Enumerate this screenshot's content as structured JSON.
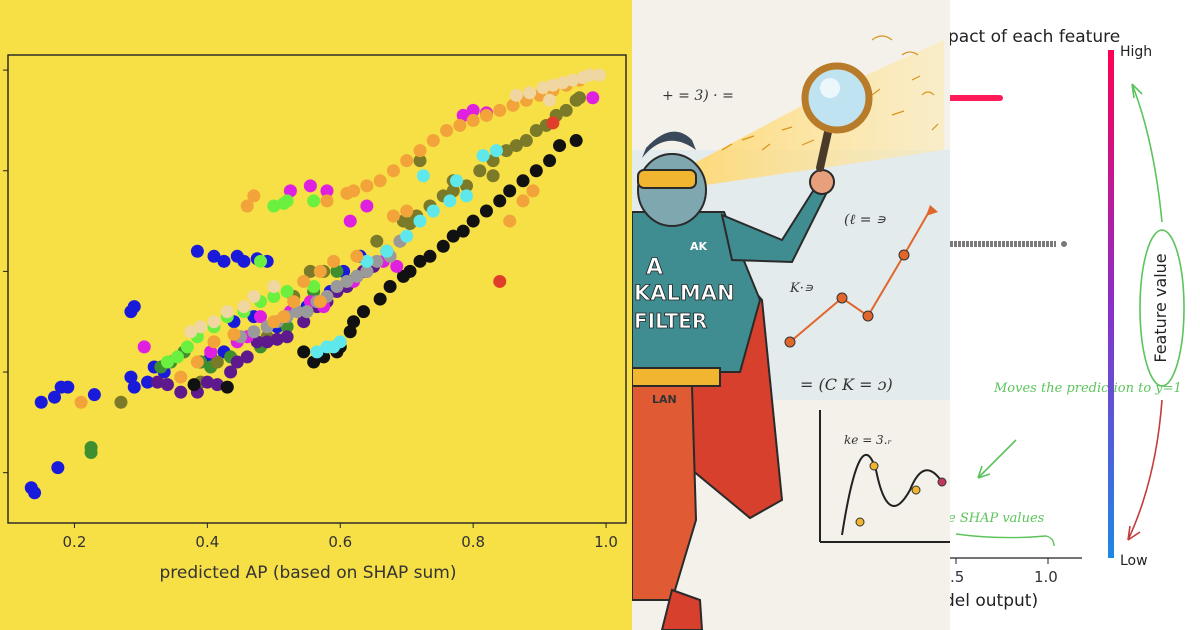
{
  "chart_data": {
    "type": "scatter",
    "xlabel": "predicted AP (based on SHAP sum)",
    "ylabel": "",
    "title": "",
    "xlim": [
      0.1,
      1.03
    ],
    "ylim": [
      0.1,
      1.03
    ],
    "x_ticks": [
      "0.2",
      "0.4",
      "0.6",
      "0.8",
      "1.0"
    ],
    "grid": false,
    "colors": {
      "background": "#f7df46",
      "blue": "#1a1adb",
      "green": "#3f8f2f",
      "olive": "#7a7a28",
      "purple": "#5e1a8c",
      "black": "#111111",
      "magenta": "#e020e0",
      "gray": "#9a9a9a",
      "cyan": "#5ee8ec",
      "lime": "#6cf040",
      "orange": "#f2a33a",
      "beige": "#f0d6a0",
      "red": "#e03e2a"
    },
    "series": [
      {
        "color": "#1a1adb",
        "points": [
          [
            0.135,
            0.17
          ],
          [
            0.14,
            0.16
          ],
          [
            0.175,
            0.21
          ],
          [
            0.15,
            0.34
          ],
          [
            0.17,
            0.35
          ],
          [
            0.18,
            0.37
          ],
          [
            0.19,
            0.37
          ],
          [
            0.23,
            0.355
          ],
          [
            0.285,
            0.39
          ],
          [
            0.29,
            0.37
          ],
          [
            0.31,
            0.38
          ],
          [
            0.32,
            0.41
          ],
          [
            0.335,
            0.4
          ],
          [
            0.29,
            0.53
          ],
          [
            0.285,
            0.52
          ],
          [
            0.385,
            0.64
          ],
          [
            0.41,
            0.63
          ],
          [
            0.425,
            0.62
          ],
          [
            0.445,
            0.63
          ],
          [
            0.455,
            0.62
          ],
          [
            0.475,
            0.625
          ],
          [
            0.49,
            0.62
          ],
          [
            0.405,
            0.43
          ],
          [
            0.425,
            0.44
          ],
          [
            0.39,
            0.42
          ],
          [
            0.44,
            0.5
          ],
          [
            0.47,
            0.51
          ],
          [
            0.505,
            0.49
          ],
          [
            0.55,
            0.53
          ],
          [
            0.585,
            0.56
          ],
          [
            0.63,
            0.63
          ],
          [
            0.605,
            0.6
          ]
        ]
      },
      {
        "color": "#3f8f2f",
        "points": [
          [
            0.225,
            0.24
          ],
          [
            0.225,
            0.25
          ],
          [
            0.33,
            0.41
          ],
          [
            0.345,
            0.42
          ],
          [
            0.365,
            0.44
          ],
          [
            0.39,
            0.42
          ],
          [
            0.405,
            0.41
          ],
          [
            0.435,
            0.43
          ],
          [
            0.48,
            0.45
          ],
          [
            0.52,
            0.49
          ],
          [
            0.56,
            0.56
          ],
          [
            0.595,
            0.6
          ]
        ]
      },
      {
        "color": "#7a7a28",
        "points": [
          [
            0.27,
            0.34
          ],
          [
            0.39,
            0.38
          ],
          [
            0.415,
            0.42
          ],
          [
            0.49,
            0.47
          ],
          [
            0.53,
            0.55
          ],
          [
            0.555,
            0.6
          ],
          [
            0.575,
            0.6
          ],
          [
            0.615,
            0.58
          ],
          [
            0.655,
            0.66
          ],
          [
            0.67,
            0.64
          ],
          [
            0.69,
            0.66
          ],
          [
            0.695,
            0.7
          ],
          [
            0.715,
            0.71
          ],
          [
            0.735,
            0.73
          ],
          [
            0.755,
            0.75
          ],
          [
            0.77,
            0.78
          ],
          [
            0.79,
            0.77
          ],
          [
            0.81,
            0.8
          ],
          [
            0.83,
            0.82
          ],
          [
            0.85,
            0.84
          ],
          [
            0.865,
            0.85
          ],
          [
            0.88,
            0.86
          ],
          [
            0.895,
            0.88
          ],
          [
            0.91,
            0.89
          ],
          [
            0.925,
            0.91
          ],
          [
            0.94,
            0.92
          ],
          [
            0.955,
            0.94
          ],
          [
            0.96,
            0.945
          ],
          [
            0.72,
            0.82
          ],
          [
            0.77,
            0.76
          ],
          [
            0.705,
            0.695
          ],
          [
            0.83,
            0.79
          ]
        ]
      },
      {
        "color": "#5e1a8c",
        "points": [
          [
            0.325,
            0.38
          ],
          [
            0.34,
            0.375
          ],
          [
            0.36,
            0.36
          ],
          [
            0.385,
            0.36
          ],
          [
            0.4,
            0.38
          ],
          [
            0.415,
            0.375
          ],
          [
            0.435,
            0.4
          ],
          [
            0.445,
            0.42
          ],
          [
            0.46,
            0.43
          ],
          [
            0.475,
            0.46
          ],
          [
            0.49,
            0.46
          ],
          [
            0.505,
            0.465
          ],
          [
            0.52,
            0.47
          ],
          [
            0.545,
            0.5
          ],
          [
            0.565,
            0.53
          ],
          [
            0.58,
            0.54
          ],
          [
            0.595,
            0.56
          ],
          [
            0.61,
            0.57
          ],
          [
            0.625,
            0.59
          ],
          [
            0.635,
            0.6
          ],
          [
            0.65,
            0.61
          ]
        ]
      },
      {
        "color": "#111111",
        "points": [
          [
            0.43,
            0.37
          ],
          [
            0.38,
            0.375
          ],
          [
            0.56,
            0.42
          ],
          [
            0.575,
            0.43
          ],
          [
            0.545,
            0.44
          ],
          [
            0.595,
            0.44
          ],
          [
            0.6,
            0.45
          ],
          [
            0.615,
            0.48
          ],
          [
            0.62,
            0.5
          ],
          [
            0.635,
            0.52
          ],
          [
            0.66,
            0.545
          ],
          [
            0.675,
            0.57
          ],
          [
            0.695,
            0.59
          ],
          [
            0.705,
            0.6
          ],
          [
            0.72,
            0.62
          ],
          [
            0.735,
            0.63
          ],
          [
            0.755,
            0.65
          ],
          [
            0.77,
            0.67
          ],
          [
            0.785,
            0.68
          ],
          [
            0.8,
            0.7
          ],
          [
            0.82,
            0.72
          ],
          [
            0.84,
            0.74
          ],
          [
            0.855,
            0.76
          ],
          [
            0.875,
            0.78
          ],
          [
            0.895,
            0.8
          ],
          [
            0.915,
            0.82
          ],
          [
            0.93,
            0.85
          ],
          [
            0.955,
            0.86
          ]
        ]
      },
      {
        "color": "#e020e0",
        "points": [
          [
            0.305,
            0.45
          ],
          [
            0.405,
            0.44
          ],
          [
            0.445,
            0.46
          ],
          [
            0.46,
            0.47
          ],
          [
            0.48,
            0.51
          ],
          [
            0.525,
            0.52
          ],
          [
            0.555,
            0.54
          ],
          [
            0.575,
            0.53
          ],
          [
            0.62,
            0.58
          ],
          [
            0.64,
            0.6
          ],
          [
            0.665,
            0.62
          ],
          [
            0.685,
            0.61
          ],
          [
            0.525,
            0.76
          ],
          [
            0.555,
            0.77
          ],
          [
            0.58,
            0.76
          ],
          [
            0.615,
            0.7
          ],
          [
            0.64,
            0.73
          ],
          [
            0.785,
            0.91
          ],
          [
            0.8,
            0.92
          ],
          [
            0.82,
            0.915
          ],
          [
            0.98,
            0.945
          ]
        ]
      },
      {
        "color": "#9a9a9a",
        "points": [
          [
            0.45,
            0.47
          ],
          [
            0.47,
            0.48
          ],
          [
            0.49,
            0.49
          ],
          [
            0.505,
            0.5
          ],
          [
            0.52,
            0.51
          ],
          [
            0.535,
            0.52
          ],
          [
            0.55,
            0.52
          ],
          [
            0.565,
            0.54
          ],
          [
            0.58,
            0.55
          ],
          [
            0.595,
            0.57
          ],
          [
            0.61,
            0.58
          ],
          [
            0.625,
            0.59
          ],
          [
            0.64,
            0.6
          ],
          [
            0.655,
            0.62
          ],
          [
            0.675,
            0.63
          ],
          [
            0.69,
            0.66
          ]
        ]
      },
      {
        "color": "#5ee8ec",
        "points": [
          [
            0.565,
            0.44
          ],
          [
            0.58,
            0.45
          ],
          [
            0.59,
            0.45
          ],
          [
            0.6,
            0.46
          ],
          [
            0.64,
            0.62
          ],
          [
            0.67,
            0.64
          ],
          [
            0.7,
            0.67
          ],
          [
            0.72,
            0.7
          ],
          [
            0.74,
            0.72
          ],
          [
            0.765,
            0.74
          ],
          [
            0.79,
            0.75
          ],
          [
            0.775,
            0.78
          ],
          [
            0.725,
            0.79
          ],
          [
            0.815,
            0.83
          ],
          [
            0.835,
            0.84
          ]
        ]
      },
      {
        "color": "#6cf040",
        "points": [
          [
            0.34,
            0.42
          ],
          [
            0.355,
            0.43
          ],
          [
            0.37,
            0.45
          ],
          [
            0.385,
            0.47
          ],
          [
            0.41,
            0.49
          ],
          [
            0.43,
            0.51
          ],
          [
            0.455,
            0.52
          ],
          [
            0.48,
            0.54
          ],
          [
            0.5,
            0.55
          ],
          [
            0.52,
            0.56
          ],
          [
            0.56,
            0.57
          ],
          [
            0.5,
            0.73
          ],
          [
            0.515,
            0.735
          ],
          [
            0.52,
            0.74
          ],
          [
            0.56,
            0.74
          ],
          [
            0.48,
            0.62
          ]
        ]
      },
      {
        "color": "#f2a33a",
        "points": [
          [
            0.21,
            0.34
          ],
          [
            0.36,
            0.39
          ],
          [
            0.385,
            0.42
          ],
          [
            0.41,
            0.46
          ],
          [
            0.44,
            0.475
          ],
          [
            0.5,
            0.5
          ],
          [
            0.515,
            0.51
          ],
          [
            0.53,
            0.54
          ],
          [
            0.57,
            0.54
          ],
          [
            0.545,
            0.58
          ],
          [
            0.57,
            0.6
          ],
          [
            0.59,
            0.62
          ],
          [
            0.625,
            0.63
          ],
          [
            0.68,
            0.71
          ],
          [
            0.7,
            0.72
          ],
          [
            0.62,
            0.76
          ],
          [
            0.64,
            0.77
          ],
          [
            0.66,
            0.78
          ],
          [
            0.68,
            0.8
          ],
          [
            0.7,
            0.82
          ],
          [
            0.72,
            0.84
          ],
          [
            0.74,
            0.86
          ],
          [
            0.76,
            0.88
          ],
          [
            0.78,
            0.89
          ],
          [
            0.8,
            0.9
          ],
          [
            0.82,
            0.91
          ],
          [
            0.84,
            0.92
          ],
          [
            0.86,
            0.93
          ],
          [
            0.88,
            0.94
          ],
          [
            0.9,
            0.95
          ],
          [
            0.92,
            0.96
          ],
          [
            0.94,
            0.97
          ],
          [
            0.96,
            0.98
          ],
          [
            0.875,
            0.74
          ],
          [
            0.89,
            0.76
          ],
          [
            0.855,
            0.7
          ],
          [
            0.61,
            0.755
          ],
          [
            0.58,
            0.74
          ],
          [
            0.47,
            0.75
          ],
          [
            0.46,
            0.73
          ]
        ]
      },
      {
        "color": "#f0d6a0",
        "points": [
          [
            0.375,
            0.48
          ],
          [
            0.39,
            0.49
          ],
          [
            0.41,
            0.5
          ],
          [
            0.43,
            0.52
          ],
          [
            0.455,
            0.53
          ],
          [
            0.47,
            0.55
          ],
          [
            0.5,
            0.57
          ],
          [
            0.865,
            0.95
          ],
          [
            0.885,
            0.955
          ],
          [
            0.905,
            0.965
          ],
          [
            0.92,
            0.97
          ],
          [
            0.935,
            0.975
          ],
          [
            0.95,
            0.98
          ],
          [
            0.965,
            0.985
          ],
          [
            0.975,
            0.99
          ],
          [
            0.99,
            0.99
          ],
          [
            0.915,
            0.94
          ]
        ]
      },
      {
        "color": "#e03e2a",
        "points": [
          [
            0.84,
            0.58
          ],
          [
            0.92,
            0.895
          ]
        ]
      }
    ]
  },
  "illustration": {
    "shirt_lines": [
      "A",
      "KALMAN",
      "FILTER"
    ],
    "shirt_corner": "AK",
    "belt_text": "LAN",
    "equation_1": "+ = 3) · =",
    "equation_2": "(ℓ = ∍",
    "equation_3": "K·∍",
    "equation_4": "= (C K = ɔ)",
    "equation_5": "ke = 3.ᵣ"
  },
  "shap_panel": {
    "title_fragment": "pact of each feature",
    "x_ticks": [
      ".5",
      "1.0"
    ],
    "xlabel_fragment": "del output)",
    "colorbar_high": "High",
    "colorbar_low": "Low",
    "colorbar_label": "Feature value",
    "annotation_1": "Moves the prediction to y=1",
    "annotation_2": "e SHAP values",
    "colors": {
      "high": "#ff0052",
      "low": "#1e88e5",
      "arrow": "#5cc45c",
      "red_arrow": "#c43b3b"
    }
  }
}
